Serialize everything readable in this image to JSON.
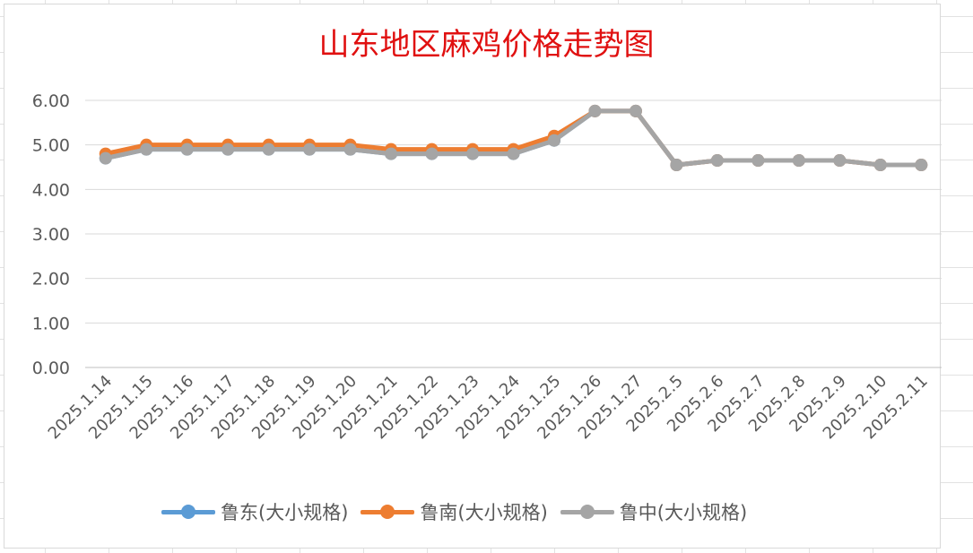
{
  "chart_data": {
    "type": "line",
    "title": "山东地区麻鸡价格走势图",
    "categories": [
      "2025.1.14",
      "2025.1.15",
      "2025.1.16",
      "2025.1.17",
      "2025.1.18",
      "2025.1.19",
      "2025.1.20",
      "2025.1.21",
      "2025.1.22",
      "2025.1.23",
      "2025.1.24",
      "2025.1.25",
      "2025.1.26",
      "2025.1.27",
      "2025.2.5",
      "2025.2.6",
      "2025.2.7",
      "2025.2.8",
      "2025.2.9",
      "2025.2.10",
      "2025.2.11"
    ],
    "ylim": [
      0,
      6
    ],
    "yticks": [
      "0.00",
      "1.00",
      "2.00",
      "3.00",
      "4.00",
      "5.00",
      "6.00"
    ],
    "grid": true,
    "legend_position": "bottom",
    "series": [
      {
        "name": "鲁东(大小规格)",
        "color": "#5b9bd5",
        "values": [
          4.7,
          4.9,
          4.9,
          4.9,
          4.9,
          4.9,
          4.9,
          4.8,
          4.8,
          4.8,
          4.8,
          5.1,
          5.76,
          5.76,
          4.55,
          4.65,
          4.65,
          4.65,
          4.65,
          4.55,
          4.55
        ]
      },
      {
        "name": "鲁南(大小规格)",
        "color": "#ed7d31",
        "values": [
          4.8,
          5.0,
          5.0,
          5.0,
          5.0,
          5.0,
          5.0,
          4.9,
          4.9,
          4.9,
          4.9,
          5.2,
          5.76,
          5.76,
          4.55,
          4.65,
          4.65,
          4.65,
          4.65,
          4.55,
          4.55
        ]
      },
      {
        "name": "鲁中(大小规格)",
        "color": "#a5a5a5",
        "values": [
          4.7,
          4.9,
          4.9,
          4.9,
          4.9,
          4.9,
          4.9,
          4.8,
          4.8,
          4.8,
          4.8,
          5.1,
          5.76,
          5.76,
          4.55,
          4.65,
          4.65,
          4.65,
          4.65,
          4.55,
          4.55
        ]
      }
    ]
  }
}
